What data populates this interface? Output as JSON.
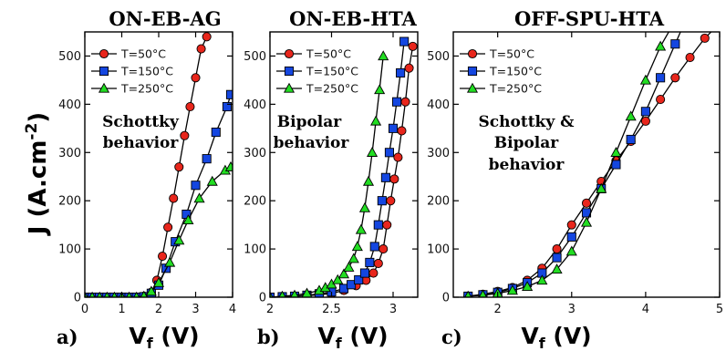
{
  "figure": {
    "ylabel": "J (A.cm",
    "ylabel_exp": "-2",
    "ylabel_close": ")",
    "xlabel_main": "V",
    "xlabel_sub": "f",
    "xlabel_unit": " (V)"
  },
  "legend_labels": [
    "T=50°C",
    "T=150°C",
    "T=250°C"
  ],
  "colors": {
    "T=50°C": "#e8261c",
    "T=150°C": "#1446e0",
    "T=250°C": "#22dd22"
  },
  "chart_data": [
    {
      "type": "line",
      "panel_label": "a)",
      "title": "ON-EB-AG",
      "annotation": [
        "Schottky",
        "behavior"
      ],
      "xlim": [
        0,
        4
      ],
      "ylim": [
        0,
        550
      ],
      "xticks": [
        0,
        1,
        2,
        3,
        4
      ],
      "yticks": [
        0,
        100,
        200,
        300,
        400,
        500
      ],
      "grid": false,
      "legend_position": "top-left",
      "series": [
        {
          "name": "T=50°C",
          "marker": "circle",
          "x": [
            0,
            0.2,
            0.4,
            0.6,
            0.8,
            1.0,
            1.2,
            1.4,
            1.6,
            1.8,
            1.95,
            2.1,
            2.25,
            2.4,
            2.55,
            2.7,
            2.85,
            3.0,
            3.15,
            3.3
          ],
          "y": [
            0,
            0,
            0,
            0,
            0,
            0,
            0,
            0,
            2,
            10,
            35,
            85,
            145,
            205,
            270,
            335,
            395,
            455,
            515,
            540
          ]
        },
        {
          "name": "T=150°C",
          "marker": "square",
          "x": [
            0,
            0.2,
            0.4,
            0.6,
            0.8,
            1.0,
            1.2,
            1.4,
            1.6,
            1.8,
            2.0,
            2.2,
            2.45,
            2.75,
            3.0,
            3.3,
            3.55,
            3.85,
            3.95
          ],
          "y": [
            0,
            0,
            0,
            0,
            0,
            0,
            0,
            0,
            1,
            8,
            25,
            60,
            115,
            172,
            232,
            287,
            342,
            395,
            420
          ]
        },
        {
          "name": "T=250°C",
          "marker": "triangle",
          "x": [
            0,
            0.2,
            0.4,
            0.6,
            0.8,
            1.0,
            1.2,
            1.4,
            1.6,
            1.8,
            2.0,
            2.3,
            2.55,
            2.8,
            3.1,
            3.45,
            3.8,
            3.95
          ],
          "y": [
            0,
            0,
            0,
            0,
            0,
            0,
            0,
            0,
            2,
            12,
            30,
            72,
            118,
            160,
            205,
            240,
            263,
            270
          ]
        }
      ]
    },
    {
      "type": "line",
      "panel_label": "b)",
      "title": "ON-EB-HTA",
      "annotation": [
        "Bipolar",
        "behavior"
      ],
      "xlim": [
        2,
        3.2
      ],
      "ylim": [
        0,
        550
      ],
      "xticks": [
        2,
        2.5,
        3
      ],
      "yticks": [
        0,
        100,
        200,
        300,
        400,
        500
      ],
      "grid": false,
      "legend_position": "top-left",
      "series": [
        {
          "name": "T=50°C",
          "marker": "circle",
          "x": [
            2.0,
            2.1,
            2.2,
            2.3,
            2.4,
            2.5,
            2.6,
            2.7,
            2.78,
            2.84,
            2.88,
            2.92,
            2.95,
            2.98,
            3.01,
            3.04,
            3.07,
            3.1,
            3.13,
            3.16
          ],
          "y": [
            0,
            1,
            2,
            3,
            5,
            8,
            14,
            24,
            35,
            50,
            70,
            100,
            150,
            200,
            245,
            290,
            345,
            405,
            475,
            520
          ]
        },
        {
          "name": "T=150°C",
          "marker": "square",
          "x": [
            2.0,
            2.1,
            2.2,
            2.3,
            2.4,
            2.5,
            2.6,
            2.66,
            2.72,
            2.77,
            2.81,
            2.85,
            2.88,
            2.91,
            2.94,
            2.97,
            3.0,
            3.03,
            3.06,
            3.09
          ],
          "y": [
            0,
            1,
            2,
            4,
            7,
            11,
            18,
            26,
            36,
            50,
            72,
            105,
            150,
            200,
            248,
            300,
            350,
            405,
            465,
            530
          ]
        },
        {
          "name": "T=250°C",
          "marker": "triangle",
          "x": [
            2.0,
            2.1,
            2.2,
            2.3,
            2.4,
            2.45,
            2.5,
            2.55,
            2.6,
            2.64,
            2.68,
            2.71,
            2.74,
            2.77,
            2.8,
            2.83,
            2.86,
            2.89,
            2.92
          ],
          "y": [
            0,
            2,
            4,
            8,
            14,
            20,
            27,
            36,
            48,
            62,
            80,
            105,
            140,
            185,
            240,
            300,
            365,
            430,
            500
          ]
        }
      ]
    },
    {
      "type": "line",
      "panel_label": "c)",
      "title": "OFF-SPU-HTA",
      "annotation": [
        "Schottky &",
        "Bipolar",
        "behavior"
      ],
      "xlim": [
        1.4,
        5
      ],
      "ylim": [
        0,
        550
      ],
      "xticks": [
        2,
        3,
        4,
        5
      ],
      "yticks": [
        0,
        100,
        200,
        300,
        400,
        500
      ],
      "grid": false,
      "legend_position": "top-left",
      "series": [
        {
          "name": "T=50°C",
          "marker": "circle",
          "x": [
            1.6,
            1.8,
            2.0,
            2.2,
            2.4,
            2.6,
            2.8,
            3.0,
            3.2,
            3.4,
            3.6,
            3.8,
            4.0,
            4.2,
            4.4,
            4.6,
            4.8,
            4.95
          ],
          "y": [
            2,
            6,
            12,
            20,
            35,
            60,
            100,
            150,
            195,
            240,
            283,
            323,
            365,
            410,
            455,
            497,
            537,
            560
          ]
        },
        {
          "name": "T=150°C",
          "marker": "square",
          "x": [
            1.6,
            1.8,
            2.0,
            2.2,
            2.4,
            2.6,
            2.8,
            3.0,
            3.2,
            3.4,
            3.6,
            3.8,
            4.0,
            4.2,
            4.4,
            4.5
          ],
          "y": [
            2,
            5,
            10,
            18,
            30,
            50,
            82,
            125,
            175,
            225,
            275,
            327,
            385,
            455,
            525,
            560
          ]
        },
        {
          "name": "T=250°C",
          "marker": "triangle",
          "x": [
            1.6,
            1.8,
            2.0,
            2.2,
            2.4,
            2.6,
            2.8,
            3.0,
            3.2,
            3.4,
            3.6,
            3.8,
            4.0,
            4.2,
            4.35
          ],
          "y": [
            2,
            4,
            8,
            14,
            22,
            35,
            58,
            95,
            155,
            225,
            300,
            375,
            450,
            520,
            560
          ]
        }
      ]
    }
  ]
}
